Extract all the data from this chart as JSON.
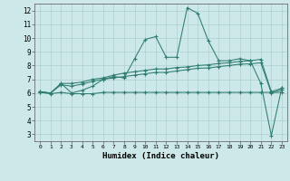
{
  "x": [
    0,
    1,
    2,
    3,
    4,
    5,
    6,
    7,
    8,
    9,
    10,
    11,
    12,
    13,
    14,
    15,
    16,
    17,
    18,
    19,
    20,
    21,
    22,
    23
  ],
  "series1": [
    6.1,
    6.0,
    6.7,
    6.0,
    6.2,
    6.5,
    7.0,
    7.2,
    7.1,
    8.5,
    9.9,
    10.1,
    8.6,
    8.6,
    12.2,
    11.8,
    9.8,
    8.35,
    8.35,
    8.5,
    8.35,
    6.7,
    2.9,
    6.4
  ],
  "series2": [
    6.1,
    6.0,
    6.7,
    6.7,
    6.8,
    7.0,
    7.1,
    7.3,
    7.45,
    7.55,
    7.65,
    7.75,
    7.75,
    7.85,
    7.9,
    8.0,
    8.05,
    8.15,
    8.2,
    8.3,
    8.35,
    8.45,
    6.1,
    6.35
  ],
  "series3": [
    6.05,
    6.0,
    6.6,
    6.5,
    6.65,
    6.85,
    7.0,
    7.1,
    7.2,
    7.3,
    7.4,
    7.5,
    7.5,
    7.6,
    7.7,
    7.8,
    7.82,
    7.92,
    8.0,
    8.1,
    8.12,
    8.2,
    6.0,
    6.25
  ],
  "series4": [
    6.05,
    5.95,
    6.05,
    5.95,
    5.95,
    5.95,
    6.05,
    6.05,
    6.05,
    6.05,
    6.05,
    6.05,
    6.05,
    6.05,
    6.05,
    6.05,
    6.05,
    6.05,
    6.05,
    6.05,
    6.05,
    6.05,
    6.05,
    6.05
  ],
  "line_color": "#2e7d6e",
  "bg_color": "#cce8e8",
  "grid_color": "#aed0d0",
  "xlabel": "Humidex (Indice chaleur)",
  "xlim": [
    -0.5,
    23.5
  ],
  "ylim": [
    2.5,
    12.5
  ],
  "yticks": [
    3,
    4,
    5,
    6,
    7,
    8,
    9,
    10,
    11,
    12
  ],
  "xticks": [
    0,
    1,
    2,
    3,
    4,
    5,
    6,
    7,
    8,
    9,
    10,
    11,
    12,
    13,
    14,
    15,
    16,
    17,
    18,
    19,
    20,
    21,
    22,
    23
  ]
}
